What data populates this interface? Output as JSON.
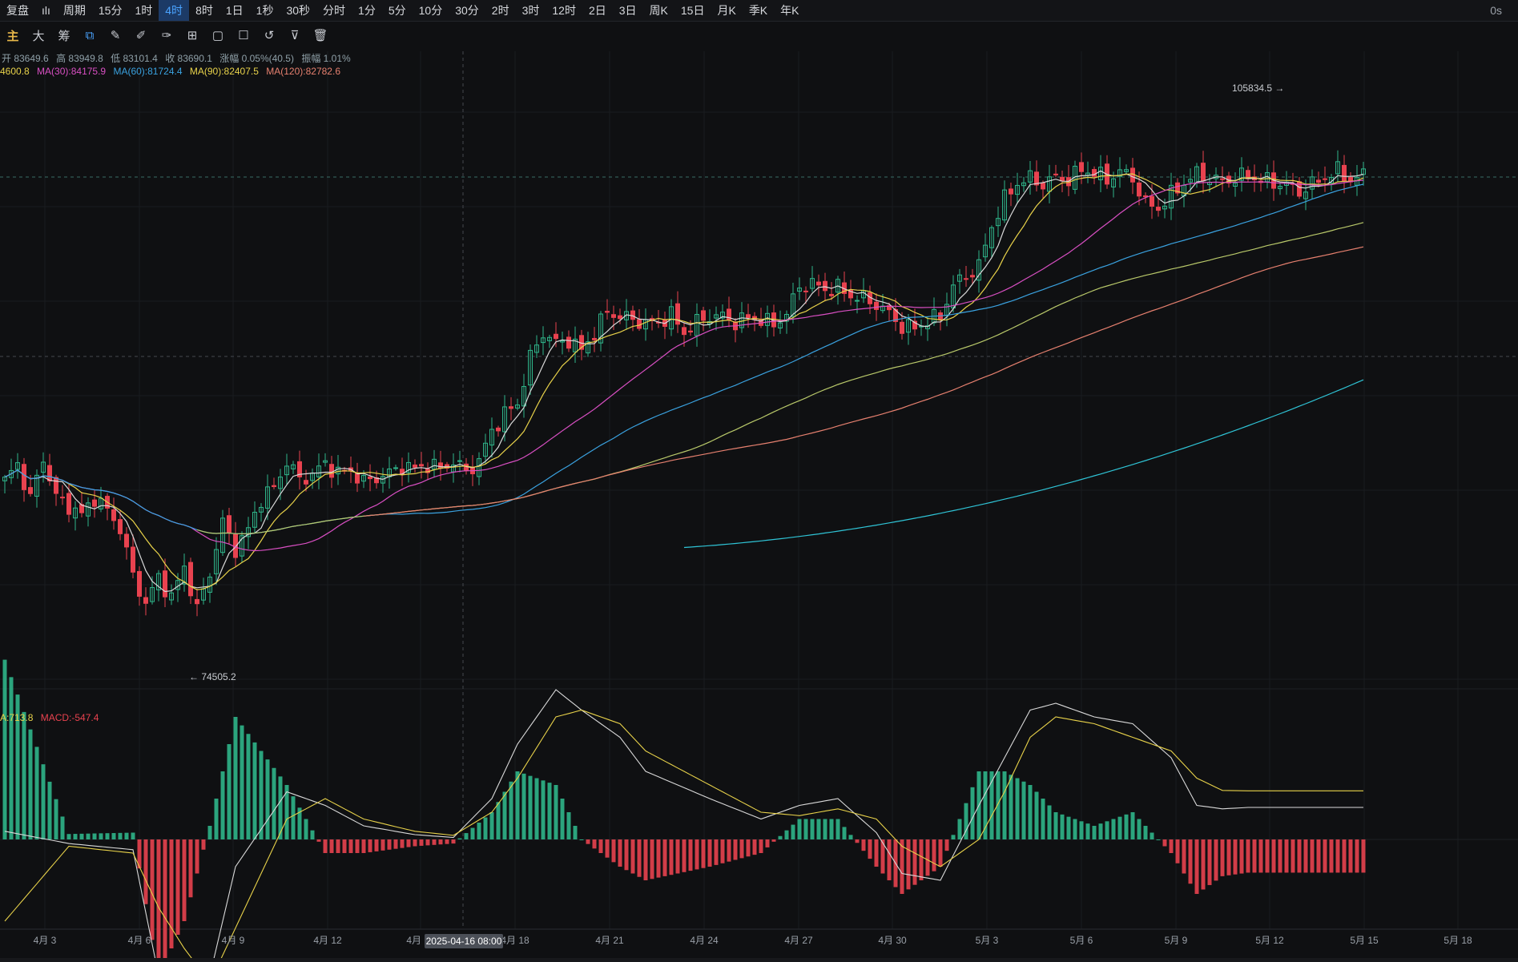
{
  "topbar": {
    "items": [
      "复盘",
      "ılı",
      "周期",
      "15分",
      "1时",
      "4时",
      "8时",
      "1日",
      "1秒",
      "30秒",
      "分时",
      "1分",
      "5分",
      "10分",
      "30分",
      "2时",
      "3时",
      "12时",
      "2日",
      "3日",
      "周K",
      "15日",
      "月K",
      "季K",
      "年K"
    ],
    "active": "4时",
    "right_text": "0s"
  },
  "toolbar": {
    "items": [
      "主",
      "大",
      "筹"
    ],
    "icons": [
      "clone-icon",
      "ruler-icon",
      "pen-icon",
      "brush-icon",
      "measure-icon",
      "copy-icon",
      "note-icon",
      "magnet-icon",
      "filter-icon",
      "trash-icon"
    ]
  },
  "ohlc_line": {
    "open": "开 83649.6",
    "high": "高 83949.8",
    "low": "低 83101.4",
    "close": "收 83690.1",
    "change": "涨幅 0.05%(40.5)",
    "amplitude": "振幅 1.01%"
  },
  "ma_line": {
    "ma_cut": "4600.8",
    "ma30": "MA(30):84175.9",
    "ma60": "MA(60):81724.4",
    "ma90": "MA(90):82407.5",
    "ma120": "MA(120):82782.6"
  },
  "macd_line": {
    "dea": "A:713.8",
    "macd": "MACD:-547.4"
  },
  "annotations": {
    "high": "105834.5 →",
    "low": "← 74505.2"
  },
  "crosshair_label": "2025-04-16 08:00",
  "colors": {
    "up": "#2fb58a",
    "down": "#e8424f",
    "ma_white": "#d9d9d9",
    "ma_yellow": "#e8d24a",
    "ma_magenta": "#d94fc3",
    "ma_blue": "#3aa2e0",
    "ma_olive": "#b9c96a",
    "ma_salmon": "#e6806f",
    "ma_cyan": "#2fc4d6"
  },
  "chart_data": {
    "type": "candlestick",
    "x_tick_labels": [
      "4月 3",
      "4月 6",
      "4月 9",
      "4月 12",
      "4月 15",
      "4月 18",
      "4月 21",
      "4月 24",
      "4月 27",
      "4月 30",
      "5月 3",
      "5月 6",
      "5月 9",
      "5月 12",
      "5月 15",
      "5月 18"
    ],
    "close_path": [
      [
        0,
        83500
      ],
      [
        2,
        84600
      ],
      [
        4,
        82300
      ],
      [
        6,
        85000
      ],
      [
        8,
        82400
      ],
      [
        10,
        81800
      ],
      [
        12,
        81200
      ],
      [
        14,
        82400
      ],
      [
        16,
        81500
      ],
      [
        18,
        80300
      ],
      [
        20,
        77100
      ],
      [
        22,
        75200
      ],
      [
        24,
        77000
      ],
      [
        26,
        75600
      ],
      [
        28,
        77700
      ],
      [
        30,
        74800
      ],
      [
        32,
        77300
      ],
      [
        34,
        80700
      ],
      [
        36,
        78900
      ],
      [
        38,
        80200
      ],
      [
        40,
        82300
      ],
      [
        42,
        83000
      ],
      [
        44,
        84800
      ],
      [
        46,
        83600
      ],
      [
        48,
        83900
      ],
      [
        50,
        84700
      ],
      [
        52,
        84000
      ],
      [
        54,
        84200
      ],
      [
        56,
        83400
      ],
      [
        58,
        83700
      ],
      [
        60,
        84000
      ],
      [
        62,
        84500
      ],
      [
        64,
        84300
      ],
      [
        66,
        84600
      ],
      [
        68,
        84300
      ],
      [
        70,
        84800
      ],
      [
        72,
        84100
      ],
      [
        74,
        84800
      ],
      [
        76,
        86900
      ],
      [
        78,
        88000
      ],
      [
        80,
        88700
      ],
      [
        82,
        91800
      ],
      [
        84,
        93500
      ],
      [
        86,
        92800
      ],
      [
        88,
        93000
      ],
      [
        90,
        92300
      ],
      [
        92,
        93500
      ],
      [
        94,
        94900
      ],
      [
        96,
        94600
      ],
      [
        98,
        94400
      ],
      [
        100,
        94100
      ],
      [
        102,
        94200
      ],
      [
        104,
        94700
      ],
      [
        106,
        93500
      ],
      [
        108,
        94200
      ],
      [
        110,
        94600
      ],
      [
        112,
        94600
      ],
      [
        114,
        94200
      ],
      [
        116,
        94500
      ],
      [
        118,
        94400
      ],
      [
        120,
        94000
      ],
      [
        122,
        94800
      ],
      [
        124,
        96600
      ],
      [
        126,
        96800
      ],
      [
        128,
        96400
      ],
      [
        130,
        96500
      ],
      [
        132,
        96000
      ],
      [
        134,
        95800
      ],
      [
        136,
        95400
      ],
      [
        138,
        94800
      ],
      [
        140,
        93900
      ],
      [
        142,
        93800
      ],
      [
        144,
        94300
      ],
      [
        146,
        94600
      ],
      [
        148,
        96700
      ],
      [
        150,
        97300
      ],
      [
        152,
        98000
      ],
      [
        154,
        100700
      ],
      [
        156,
        102500
      ],
      [
        158,
        103600
      ],
      [
        160,
        103900
      ],
      [
        162,
        103500
      ],
      [
        164,
        104000
      ],
      [
        166,
        103800
      ],
      [
        168,
        104500
      ],
      [
        170,
        104300
      ],
      [
        172,
        103800
      ],
      [
        174,
        104400
      ],
      [
        176,
        103900
      ],
      [
        178,
        102200
      ],
      [
        180,
        101900
      ],
      [
        182,
        102800
      ],
      [
        184,
        103600
      ],
      [
        186,
        104200
      ],
      [
        188,
        103900
      ],
      [
        190,
        103700
      ],
      [
        192,
        103900
      ],
      [
        194,
        104100
      ],
      [
        196,
        103800
      ],
      [
        198,
        103600
      ],
      [
        200,
        103500
      ],
      [
        202,
        103000
      ],
      [
        204,
        103500
      ],
      [
        206,
        104000
      ],
      [
        208,
        104400
      ],
      [
        210,
        103800
      ],
      [
        212,
        104100
      ]
    ],
    "macd_dif_path": [
      [
        0,
        120
      ],
      [
        10,
        -60
      ],
      [
        20,
        -150
      ],
      [
        24,
        -2000
      ],
      [
        28,
        -2200
      ],
      [
        32,
        -2000
      ],
      [
        36,
        -400
      ],
      [
        44,
        700
      ],
      [
        50,
        500
      ],
      [
        56,
        200
      ],
      [
        64,
        70
      ],
      [
        70,
        30
      ],
      [
        76,
        600
      ],
      [
        80,
        1400
      ],
      [
        86,
        2200
      ],
      [
        90,
        1900
      ],
      [
        96,
        1500
      ],
      [
        100,
        1000
      ],
      [
        110,
        600
      ],
      [
        118,
        300
      ],
      [
        124,
        500
      ],
      [
        130,
        600
      ],
      [
        136,
        100
      ],
      [
        140,
        -500
      ],
      [
        146,
        -600
      ],
      [
        152,
        500
      ],
      [
        156,
        1200
      ],
      [
        160,
        1900
      ],
      [
        164,
        2000
      ],
      [
        170,
        1800
      ],
      [
        176,
        1700
      ],
      [
        182,
        1200
      ],
      [
        186,
        500
      ],
      [
        190,
        450
      ],
      [
        194,
        470
      ]
    ],
    "macd_dea_path": [
      [
        0,
        -1200
      ],
      [
        10,
        -100
      ],
      [
        20,
        -200
      ],
      [
        24,
        -1000
      ],
      [
        28,
        -1600
      ],
      [
        32,
        -2100
      ],
      [
        36,
        -1300
      ],
      [
        44,
        300
      ],
      [
        50,
        600
      ],
      [
        56,
        300
      ],
      [
        64,
        120
      ],
      [
        70,
        60
      ],
      [
        76,
        400
      ],
      [
        80,
        900
      ],
      [
        86,
        1800
      ],
      [
        90,
        1900
      ],
      [
        96,
        1700
      ],
      [
        100,
        1300
      ],
      [
        110,
        800
      ],
      [
        118,
        400
      ],
      [
        124,
        350
      ],
      [
        130,
        450
      ],
      [
        136,
        300
      ],
      [
        140,
        -100
      ],
      [
        146,
        -400
      ],
      [
        152,
        0
      ],
      [
        156,
        700
      ],
      [
        160,
        1500
      ],
      [
        164,
        1800
      ],
      [
        170,
        1700
      ],
      [
        176,
        1500
      ],
      [
        182,
        1300
      ],
      [
        186,
        900
      ],
      [
        190,
        720
      ],
      [
        194,
        713.8
      ]
    ],
    "ma_last": {
      "MA30": 84175.9,
      "MA60": 81724.4,
      "MA90": 82407.5,
      "MA120": 82782.6
    },
    "high": 105834.5,
    "low": 74505.2,
    "y_range": [
      70000,
      110000
    ]
  }
}
